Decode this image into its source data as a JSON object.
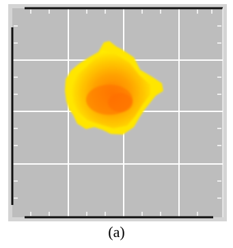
{
  "figure": {
    "caption": "(a)",
    "colors": {
      "frame": "#cfcfcf",
      "plot_background": "#bcbcbc",
      "grid": "#ffffff",
      "axis": "#111111",
      "blob_outer": "#ffee00",
      "blob_mid": "#ffb800",
      "blob_core": "#ff7a00"
    },
    "grid_visible": true,
    "icons": [
      "heatmap-blob"
    ]
  }
}
